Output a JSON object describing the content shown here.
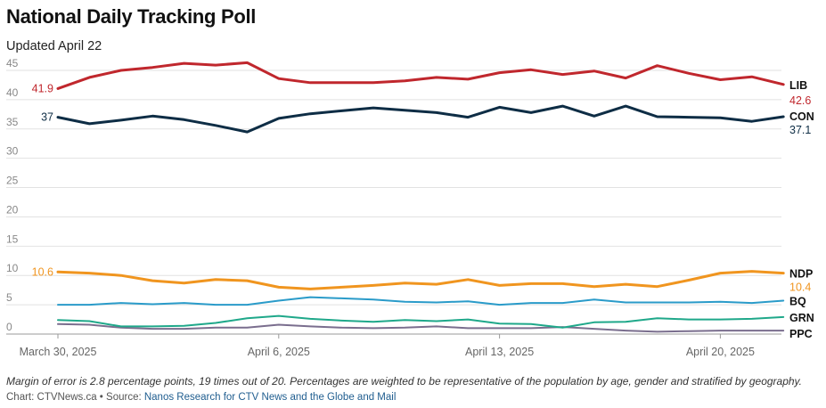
{
  "header": {
    "title": "National Daily Tracking Poll",
    "subtitle": "Updated April 22"
  },
  "footer": {
    "note": "Margin of error is 2.8 percentage points, 19 times out of 20. Percentages are weighted to be representative of the population by age, gender and stratified by geography.",
    "credit_prefix": "Chart: CTVNews.ca • Source: ",
    "source_link": "Nanos Research for CTV News and the Globe and Mail"
  },
  "chart_data": {
    "type": "line",
    "x_tick_labels": [
      "March 30, 2025",
      "April 6, 2025",
      "April 13, 2025",
      "April 20, 2025"
    ],
    "x_tick_indices": [
      0,
      7,
      14,
      21
    ],
    "ylim": [
      0,
      45
    ],
    "y_ticks": [
      0,
      5,
      10,
      15,
      20,
      25,
      30,
      35,
      40,
      45
    ],
    "grid": true,
    "series": [
      {
        "name": "LIB",
        "color": "#c0272d",
        "width": 3,
        "start_label": "41.9",
        "end_label": "42.6",
        "values": [
          41.9,
          43.8,
          45.0,
          45.5,
          46.2,
          45.9,
          46.3,
          43.6,
          42.9,
          42.9,
          42.9,
          43.2,
          43.8,
          43.5,
          44.6,
          45.1,
          44.3,
          44.9,
          43.7,
          45.8,
          44.5,
          43.4,
          43.9,
          42.6
        ]
      },
      {
        "name": "CON",
        "color": "#0e2d45",
        "width": 3,
        "start_label": "37",
        "end_label": "37.1",
        "values": [
          37.0,
          35.9,
          36.5,
          37.2,
          36.6,
          35.6,
          34.5,
          36.8,
          37.6,
          38.1,
          38.6,
          38.2,
          37.8,
          37.0,
          38.7,
          37.8,
          38.9,
          37.2,
          38.9,
          37.1,
          37.0,
          36.9,
          36.3,
          37.1
        ]
      },
      {
        "name": "NDP",
        "color": "#f0951f",
        "width": 3,
        "start_label": "10.6",
        "end_label": "10.4",
        "values": [
          10.6,
          10.4,
          10.0,
          9.1,
          8.7,
          9.3,
          9.1,
          8.0,
          7.7,
          8.0,
          8.3,
          8.7,
          8.5,
          9.3,
          8.3,
          8.6,
          8.6,
          8.1,
          8.5,
          8.1,
          9.2,
          10.4,
          10.7,
          10.4
        ]
      },
      {
        "name": "BQ",
        "color": "#2a9bc9",
        "width": 2,
        "start_label": "",
        "end_label": "",
        "values": [
          5.0,
          5.0,
          5.3,
          5.1,
          5.3,
          5.0,
          5.0,
          5.7,
          6.3,
          6.1,
          5.9,
          5.5,
          5.4,
          5.6,
          5.0,
          5.3,
          5.3,
          5.9,
          5.4,
          5.4,
          5.4,
          5.5,
          5.3,
          5.7
        ]
      },
      {
        "name": "GRN",
        "color": "#1fa88a",
        "width": 2,
        "start_label": "",
        "end_label": "",
        "values": [
          2.4,
          2.2,
          1.3,
          1.3,
          1.4,
          1.9,
          2.7,
          3.1,
          2.6,
          2.3,
          2.1,
          2.4,
          2.2,
          2.5,
          1.8,
          1.7,
          1.1,
          2.0,
          2.1,
          2.7,
          2.5,
          2.5,
          2.6,
          2.9
        ]
      },
      {
        "name": "PPC",
        "color": "#7a6e8e",
        "width": 2,
        "start_label": "",
        "end_label": "",
        "values": [
          1.7,
          1.6,
          1.1,
          0.9,
          0.9,
          1.1,
          1.1,
          1.6,
          1.3,
          1.1,
          1.0,
          1.1,
          1.3,
          1.0,
          1.0,
          1.0,
          1.2,
          0.9,
          0.6,
          0.4,
          0.5,
          0.6,
          0.6,
          0.6
        ]
      }
    ]
  }
}
